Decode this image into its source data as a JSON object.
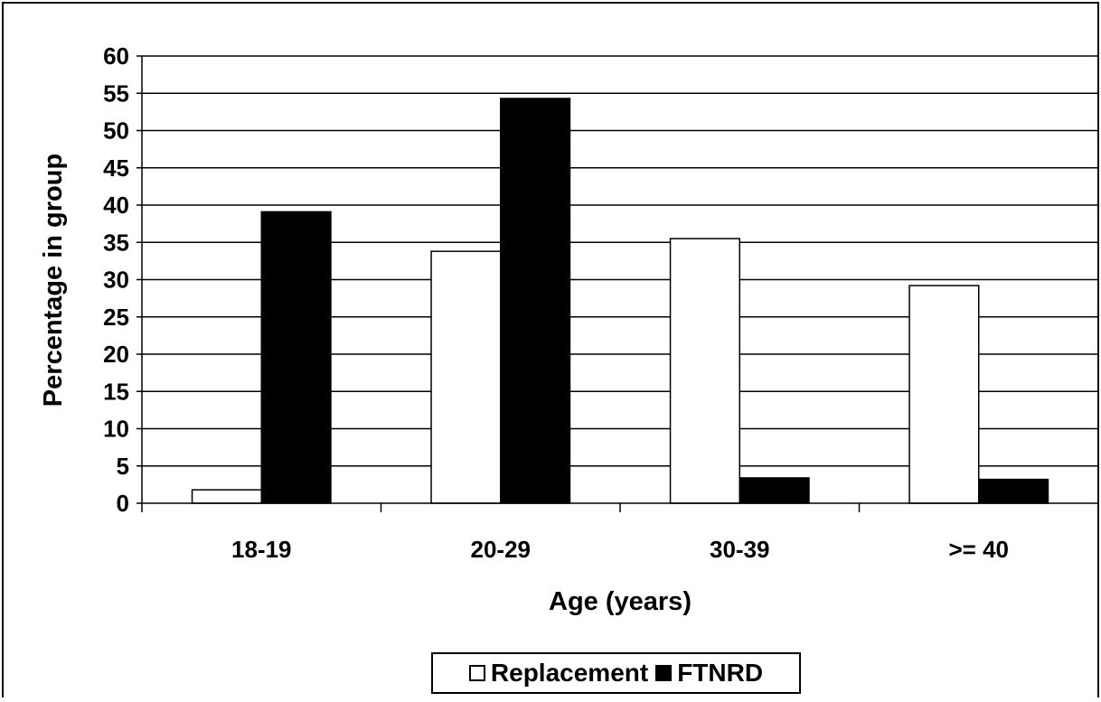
{
  "chart_data": {
    "type": "bar",
    "title": "",
    "xlabel": "Age (years)",
    "ylabel": "Percentage in group",
    "categories": [
      "18-19",
      "20-29",
      "30-39",
      ">= 40"
    ],
    "series": [
      {
        "name": "Replacement",
        "values": [
          1.8,
          33.8,
          35.5,
          29.2
        ],
        "color": "#ffffff"
      },
      {
        "name": "FTNRD",
        "values": [
          39.1,
          54.3,
          3.4,
          3.2
        ],
        "color": "#000000"
      }
    ],
    "ylim": [
      0,
      60
    ],
    "yticks": [
      0,
      5,
      10,
      15,
      20,
      25,
      30,
      35,
      40,
      45,
      50,
      55,
      60
    ],
    "grid": true,
    "legend_position": "bottom"
  }
}
